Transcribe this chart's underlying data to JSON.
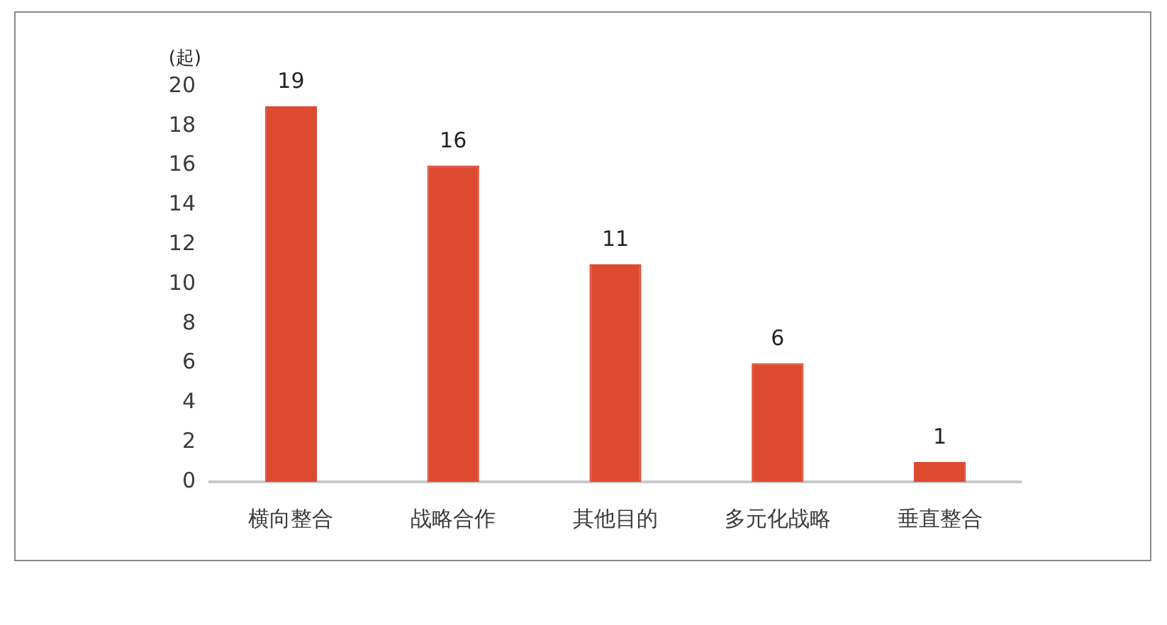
{
  "chart_data": {
    "type": "bar",
    "ylabel": "(起)",
    "categories": [
      "横向整合",
      "战略合作",
      "其他目的",
      "多元化战略",
      "垂直整合"
    ],
    "values": [
      19,
      16,
      11,
      6,
      1
    ],
    "color": "#de4a30",
    "ylim": [
      0,
      20
    ],
    "yticks": [
      0,
      2,
      4,
      6,
      8,
      10,
      12,
      14,
      16,
      18,
      20
    ],
    "data_labels": true
  }
}
